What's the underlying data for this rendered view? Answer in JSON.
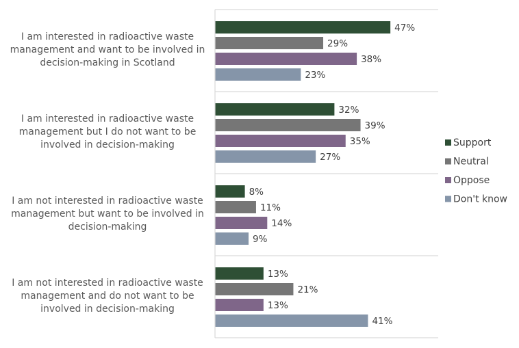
{
  "chart_data": {
    "type": "bar",
    "orientation": "horizontal",
    "categories": [
      [
        "I am interested in radioactive waste",
        "management and want to be involved in",
        "decision-making in Scotland"
      ],
      [
        "I am interested in radioactive waste",
        "management but I do not want to be",
        "involved in decision-making"
      ],
      [
        "I am not interested in radioactive waste",
        "management but want to be involved in",
        "decision-making"
      ],
      [
        "I am not interested in radioactive waste",
        "management and do not want to be",
        "involved in decision-making"
      ]
    ],
    "series": [
      {
        "name": "Support",
        "color": "#2e4f35",
        "values": [
          47,
          32,
          8,
          13
        ]
      },
      {
        "name": "Neutral",
        "color": "#767676",
        "values": [
          29,
          39,
          11,
          21
        ]
      },
      {
        "name": "Oppose",
        "color": "#7f6689",
        "values": [
          38,
          35,
          14,
          13
        ]
      },
      {
        "name": "Don't know",
        "color": "#8595a9",
        "values": [
          23,
          27,
          9,
          41
        ]
      }
    ],
    "value_suffix": "%",
    "xlim": [
      0,
      60
    ],
    "grid": "horizontal separators between categories",
    "legend": "right"
  }
}
